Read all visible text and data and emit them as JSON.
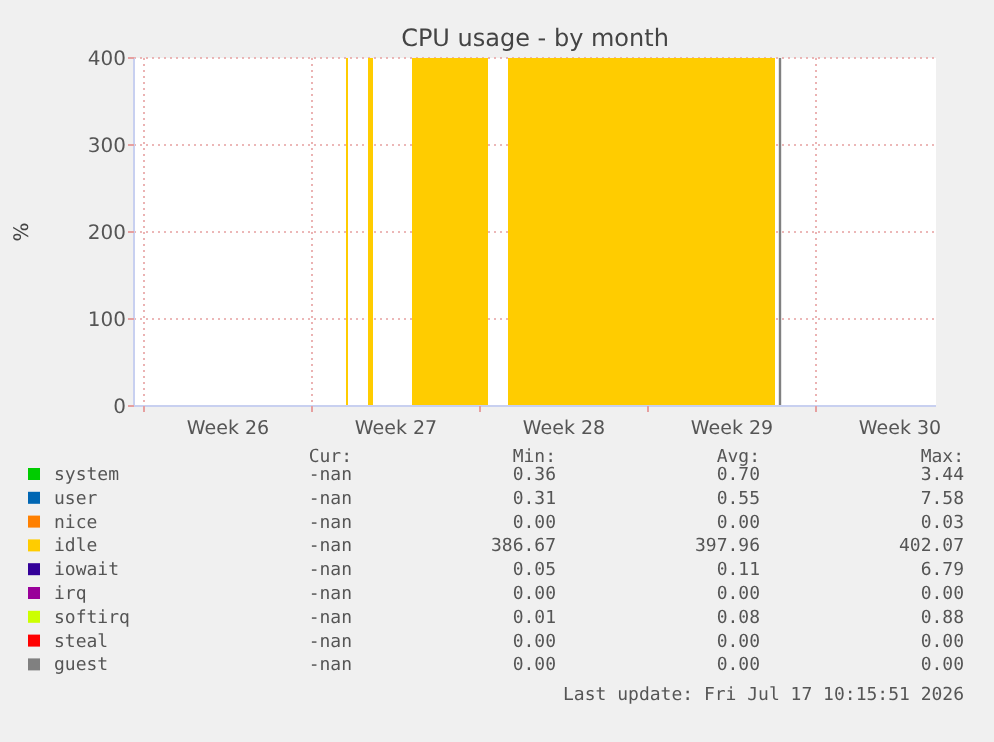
{
  "chart_data": {
    "type": "area",
    "title": "CPU usage - by month",
    "ylabel": "%",
    "x": [
      "2026-06-30T10:00",
      "2026-06-30T12:00",
      "2026-06-30T13:00",
      "2026-07-01T08:00",
      "2026-07-01T13:00",
      "2026-07-01T14:00",
      "2026-07-03T04:00",
      "2026-07-06T08:00",
      "2026-07-06T09:00",
      "2026-07-07T04:00",
      "2026-07-18T07:00"
    ],
    "series": [
      {
        "name": "system",
        "color": "#00cc00",
        "values": [
          null,
          null,
          null,
          null,
          null,
          null,
          null,
          null,
          null,
          null,
          null
        ]
      },
      {
        "name": "user",
        "color": "#0066b3",
        "values": [
          null,
          null,
          null,
          null,
          null,
          null,
          null,
          null,
          null,
          null,
          null
        ]
      },
      {
        "name": "nice",
        "color": "#ff8000",
        "values": [
          null,
          null,
          null,
          null,
          null,
          null,
          null,
          null,
          null,
          null,
          null
        ]
      },
      {
        "name": "idle",
        "color": "#ffcc00",
        "values": [
          400,
          400,
          null,
          400,
          400,
          null,
          400,
          400,
          null,
          400,
          400
        ]
      },
      {
        "name": "iowait",
        "color": "#330099",
        "values": [
          null,
          null,
          null,
          null,
          null,
          null,
          null,
          null,
          null,
          null,
          null
        ]
      },
      {
        "name": "irq",
        "color": "#990099",
        "values": [
          null,
          null,
          null,
          null,
          null,
          null,
          null,
          null,
          null,
          null,
          null
        ]
      },
      {
        "name": "softirq",
        "color": "#ccff00",
        "values": [
          null,
          null,
          null,
          null,
          null,
          null,
          null,
          null,
          null,
          null,
          null
        ]
      },
      {
        "name": "steal",
        "color": "#ff0000",
        "values": [
          null,
          null,
          null,
          null,
          null,
          null,
          null,
          null,
          null,
          null,
          null
        ]
      },
      {
        "name": "guest",
        "color": "#808080",
        "values": [
          null,
          null,
          null,
          null,
          null,
          null,
          null,
          null,
          null,
          null,
          null
        ]
      }
    ],
    "xlim": [
      "2026-06-21T14:00",
      "2026-07-25T00:00"
    ],
    "xticks": [
      {
        "value": "2026-06-22",
        "label": null
      },
      {
        "value": "2026-06-25T12:00",
        "label": "Week 26"
      },
      {
        "value": "2026-06-29",
        "label": null
      },
      {
        "value": "2026-07-02T12:00",
        "label": "Week 27"
      },
      {
        "value": "2026-07-06",
        "label": null
      },
      {
        "value": "2026-07-09T12:00",
        "label": "Week 28"
      },
      {
        "value": "2026-07-13",
        "label": null
      },
      {
        "value": "2026-07-16T12:00",
        "label": "Week 29"
      },
      {
        "value": "2026-07-20",
        "label": null
      },
      {
        "value": "2026-07-23T12:00",
        "label": "Week 30"
      }
    ],
    "ylim": [
      0,
      400
    ],
    "yticks": [
      0,
      100,
      200,
      300,
      400
    ],
    "grid": true,
    "legend": "bottom",
    "ref_lines": [
      {
        "axis": "x",
        "value": "2026-07-18T12:00",
        "color": "#808080"
      }
    ],
    "annotations": [
      "Cur:",
      "Min:",
      "Avg:",
      "Max:",
      "-nan",
      "0.36",
      "0.70",
      "3.44",
      "-nan",
      "0.31",
      "0.55",
      "7.58",
      "-nan",
      "0.00",
      "0.00",
      "0.03",
      "-nan",
      "386.67",
      "397.96",
      "402.07",
      "-nan",
      "0.05",
      "0.11",
      "6.79",
      "-nan",
      "0.00",
      "0.00",
      "0.00",
      "-nan",
      "0.01",
      "0.08",
      "0.88",
      "-nan",
      "0.00",
      "0.00",
      "0.00",
      "-nan",
      "0.00",
      "0.00",
      "0.00",
      "Last update: Fri Jul 17 10:15:51 2026"
    ]
  }
}
